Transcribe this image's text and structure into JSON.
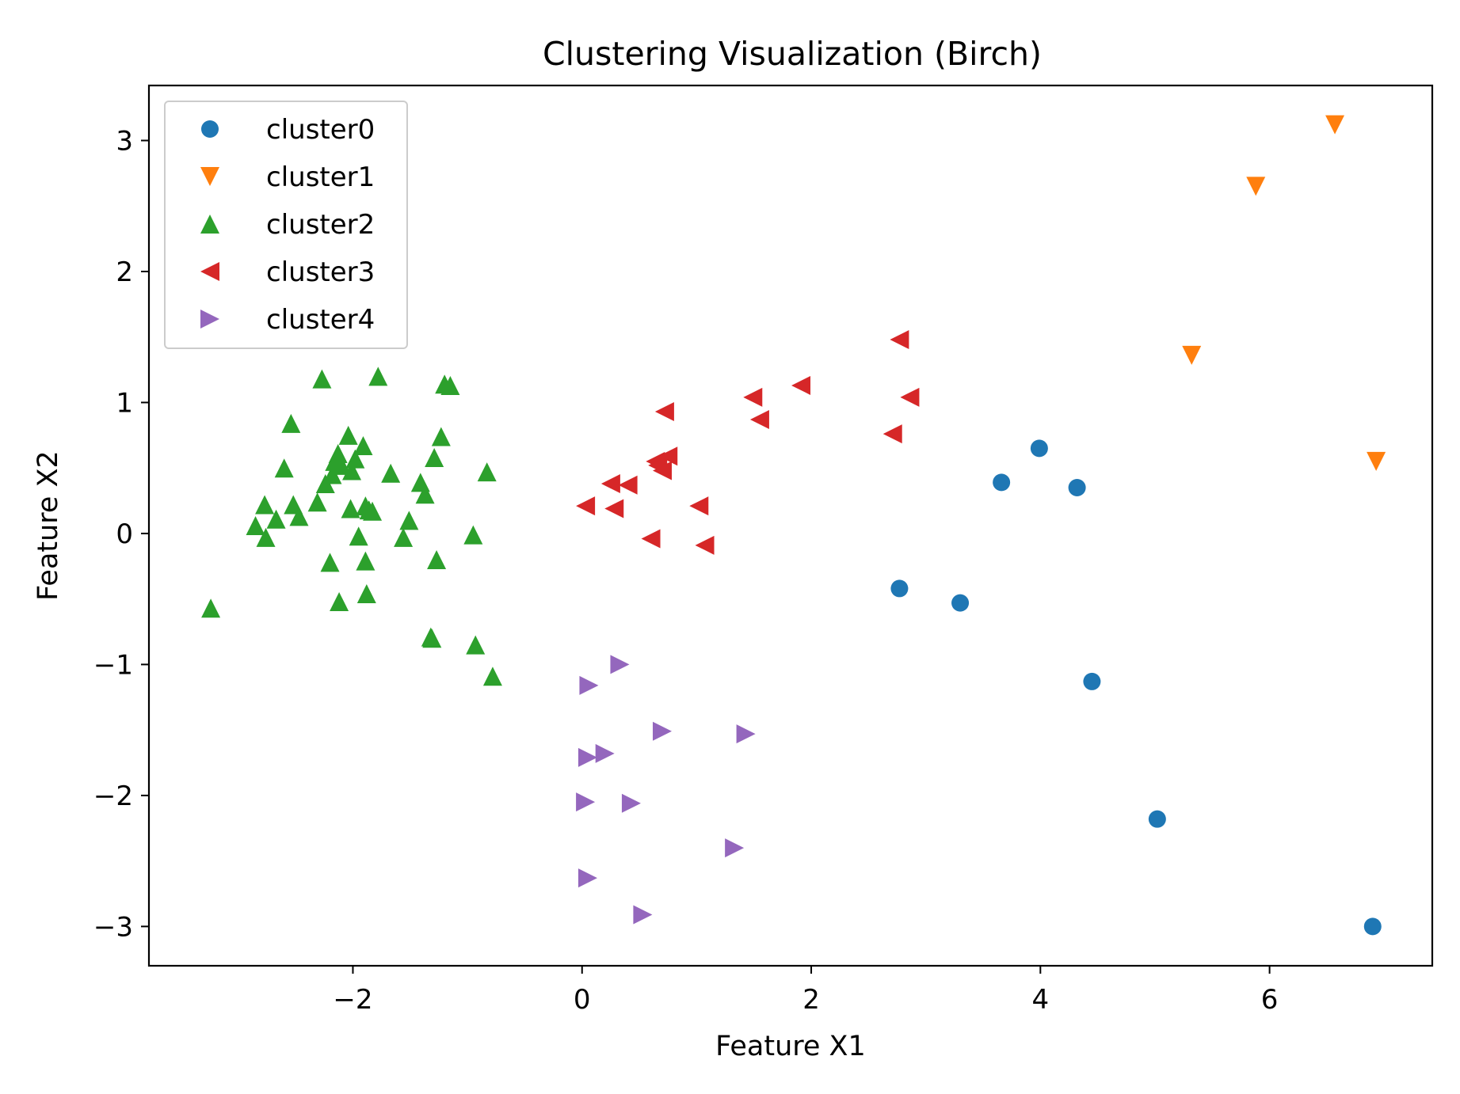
{
  "chart_data": {
    "type": "scatter",
    "title": "Clustering Visualization (Birch)",
    "xlabel": "Feature X1",
    "ylabel": "Feature X2",
    "xlim": [
      -3.78,
      7.42
    ],
    "ylim": [
      -3.3,
      3.42
    ],
    "xticks": [
      -2,
      0,
      2,
      4,
      6
    ],
    "yticks": [
      -3,
      -2,
      -1,
      0,
      1,
      2,
      3
    ],
    "xtick_labels": [
      "−2",
      "0",
      "2",
      "4",
      "6"
    ],
    "ytick_labels": [
      "−3",
      "−2",
      "−1",
      "0",
      "1",
      "2",
      "3"
    ],
    "grid": false,
    "legend_position": "upper-left",
    "series": [
      {
        "name": "cluster0",
        "marker": "circle",
        "color": "#1f77b4",
        "x": [
          2.77,
          3.3,
          3.66,
          3.99,
          4.32,
          4.45,
          5.02,
          6.9
        ],
        "y": [
          -0.42,
          -0.53,
          0.39,
          0.65,
          0.35,
          -1.13,
          -2.18,
          -3.0
        ]
      },
      {
        "name": "cluster1",
        "marker": "triangle-down",
        "color": "#ff7f0e",
        "x": [
          5.32,
          5.88,
          6.57,
          6.93
        ],
        "y": [
          1.36,
          2.65,
          3.12,
          0.55
        ]
      },
      {
        "name": "cluster2",
        "marker": "triangle-up",
        "color": "#2ca02c",
        "x": [
          -3.24,
          -2.85,
          -2.77,
          -2.76,
          -2.67,
          -2.6,
          -2.54,
          -2.52,
          -2.47,
          -2.31,
          -2.27,
          -2.24,
          -2.2,
          -2.18,
          -2.16,
          -2.13,
          -2.12,
          -2.1,
          -2.04,
          -2.02,
          -2.01,
          -1.98,
          -1.95,
          -1.91,
          -1.89,
          -1.89,
          -1.88,
          -1.86,
          -1.83,
          -1.78,
          -1.67,
          -1.56,
          -1.51,
          -1.41,
          -1.37,
          -1.32,
          -1.31,
          -1.29,
          -1.27,
          -1.23,
          -1.2,
          -1.15,
          -0.95,
          -0.93,
          -0.83,
          -0.78
        ],
        "y": [
          -0.57,
          0.06,
          0.22,
          -0.03,
          0.11,
          0.5,
          0.84,
          0.22,
          0.13,
          0.24,
          1.18,
          0.38,
          -0.22,
          0.45,
          0.55,
          0.61,
          -0.52,
          0.52,
          0.75,
          0.19,
          0.48,
          0.57,
          -0.02,
          0.67,
          0.21,
          -0.21,
          -0.46,
          0.18,
          0.17,
          1.2,
          0.46,
          -0.03,
          0.1,
          0.39,
          0.3,
          -0.79,
          -0.8,
          0.58,
          -0.2,
          0.74,
          1.14,
          1.13,
          -0.01,
          -0.85,
          0.47,
          -1.09
        ]
      },
      {
        "name": "cluster3",
        "marker": "triangle-left",
        "color": "#d62728",
        "x": [
          0.03,
          0.25,
          0.28,
          0.4,
          0.6,
          0.64,
          0.66,
          0.7,
          0.72,
          0.75,
          1.02,
          1.07,
          1.49,
          1.55,
          1.91,
          2.71,
          2.77,
          2.86
        ],
        "y": [
          0.21,
          0.38,
          0.19,
          0.37,
          -0.04,
          0.55,
          0.52,
          0.48,
          0.93,
          0.59,
          0.21,
          -0.09,
          1.04,
          0.87,
          1.13,
          0.76,
          1.48,
          1.04
        ]
      },
      {
        "name": "cluster4",
        "marker": "triangle-right",
        "color": "#9467bd",
        "x": [
          0.03,
          0.05,
          0.05,
          0.06,
          0.2,
          0.33,
          0.43,
          0.53,
          0.7,
          1.33,
          1.43
        ],
        "y": [
          -2.05,
          -2.63,
          -1.71,
          -1.16,
          -1.68,
          -1.0,
          -2.06,
          -2.91,
          -1.51,
          -2.4,
          -1.53
        ]
      }
    ]
  }
}
